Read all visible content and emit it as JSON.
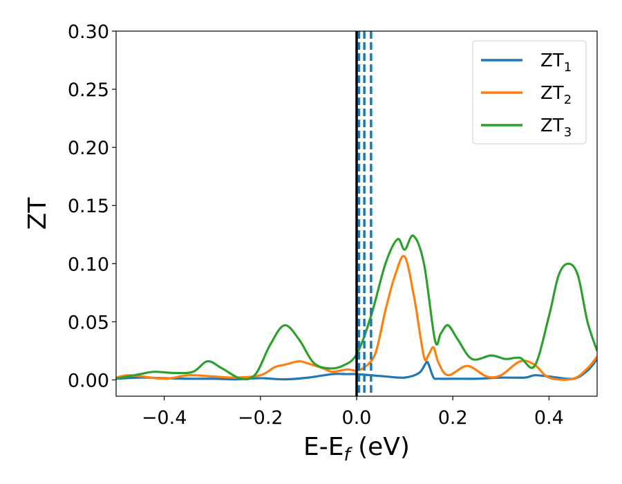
{
  "chart_data": {
    "type": "line",
    "xlabel": "E-E",
    "xlabel_sub": "f",
    "xlabel_unit": " (eV)",
    "ylabel": "ZT",
    "xlim": [
      -0.5,
      0.5
    ],
    "ylim": [
      -0.014,
      0.3
    ],
    "xticks": [
      -0.4,
      -0.2,
      0.0,
      0.2,
      0.4
    ],
    "xtick_labels": [
      "−0.4",
      "−0.2",
      "0.0",
      "0.2",
      "0.4"
    ],
    "yticks": [
      0.0,
      0.05,
      0.1,
      0.15,
      0.2,
      0.25,
      0.3
    ],
    "ytick_labels": [
      "0.00",
      "0.05",
      "0.10",
      "0.15",
      "0.20",
      "0.25",
      "0.30"
    ],
    "grid": false,
    "legend_position": "top-right",
    "vlines_solid": [
      {
        "x": 0.0,
        "color": "#000000"
      }
    ],
    "vlines_dashed": [
      {
        "x": 0.005,
        "color": "#1f77b4"
      },
      {
        "x": 0.016,
        "color": "#1f77b4"
      },
      {
        "x": 0.03,
        "color": "#1f77b4"
      }
    ],
    "series": [
      {
        "name": "ZT",
        "sub": "1",
        "color": "#1f77b4",
        "x": [
          -0.5,
          -0.45,
          -0.4,
          -0.35,
          -0.3,
          -0.25,
          -0.2,
          -0.15,
          -0.1,
          -0.05,
          -0.02,
          0.0,
          0.03,
          0.06,
          0.1,
          0.13,
          0.145,
          0.15,
          0.16,
          0.17,
          0.2,
          0.25,
          0.3,
          0.35,
          0.37,
          0.4,
          0.45,
          0.48,
          0.5
        ],
        "y": [
          0.001,
          0.002,
          0.0015,
          0.001,
          0.001,
          0.0005,
          0.0015,
          0.0005,
          0.002,
          0.005,
          0.005,
          0.005,
          0.004,
          0.003,
          0.002,
          0.006,
          0.015,
          0.013,
          0.002,
          0.001,
          0.001,
          0.001,
          0.002,
          0.002,
          0.004,
          0.003,
          0.001,
          0.008,
          0.018
        ]
      },
      {
        "name": "ZT",
        "sub": "2",
        "color": "#ff7f0e",
        "x": [
          -0.5,
          -0.47,
          -0.4,
          -0.35,
          -0.3,
          -0.25,
          -0.2,
          -0.17,
          -0.15,
          -0.12,
          -0.1,
          -0.07,
          -0.05,
          -0.02,
          0.0,
          0.02,
          0.04,
          0.06,
          0.08,
          0.1,
          0.12,
          0.14,
          0.15,
          0.16,
          0.17,
          0.19,
          0.23,
          0.27,
          0.3,
          0.34,
          0.37,
          0.4,
          0.45,
          0.48,
          0.5
        ],
        "y": [
          0.002,
          0.004,
          0.001,
          0.004,
          0.003,
          0.002,
          0.004,
          0.011,
          0.013,
          0.016,
          0.014,
          0.01,
          0.007,
          0.009,
          0.008,
          0.012,
          0.024,
          0.06,
          0.09,
          0.106,
          0.07,
          0.02,
          0.022,
          0.028,
          0.015,
          0.004,
          0.012,
          0.003,
          0.004,
          0.016,
          0.013,
          0.002,
          0.001,
          0.01,
          0.02
        ]
      },
      {
        "name": "ZT",
        "sub": "3",
        "color": "#2ca02c",
        "x": [
          -0.5,
          -0.45,
          -0.42,
          -0.38,
          -0.34,
          -0.31,
          -0.28,
          -0.24,
          -0.21,
          -0.18,
          -0.15,
          -0.12,
          -0.09,
          -0.06,
          -0.03,
          0.0,
          0.03,
          0.06,
          0.085,
          0.1,
          0.118,
          0.14,
          0.163,
          0.175,
          0.19,
          0.21,
          0.24,
          0.28,
          0.31,
          0.34,
          0.37,
          0.4,
          0.42,
          0.44,
          0.46,
          0.48,
          0.5
        ],
        "y": [
          0.001,
          0.005,
          0.007,
          0.006,
          0.007,
          0.016,
          0.01,
          0.001,
          0.005,
          0.03,
          0.047,
          0.035,
          0.015,
          0.01,
          0.012,
          0.022,
          0.055,
          0.1,
          0.121,
          0.112,
          0.124,
          0.1,
          0.034,
          0.04,
          0.047,
          0.035,
          0.018,
          0.021,
          0.018,
          0.019,
          0.012,
          0.055,
          0.09,
          0.1,
          0.09,
          0.05,
          0.025
        ]
      }
    ]
  }
}
